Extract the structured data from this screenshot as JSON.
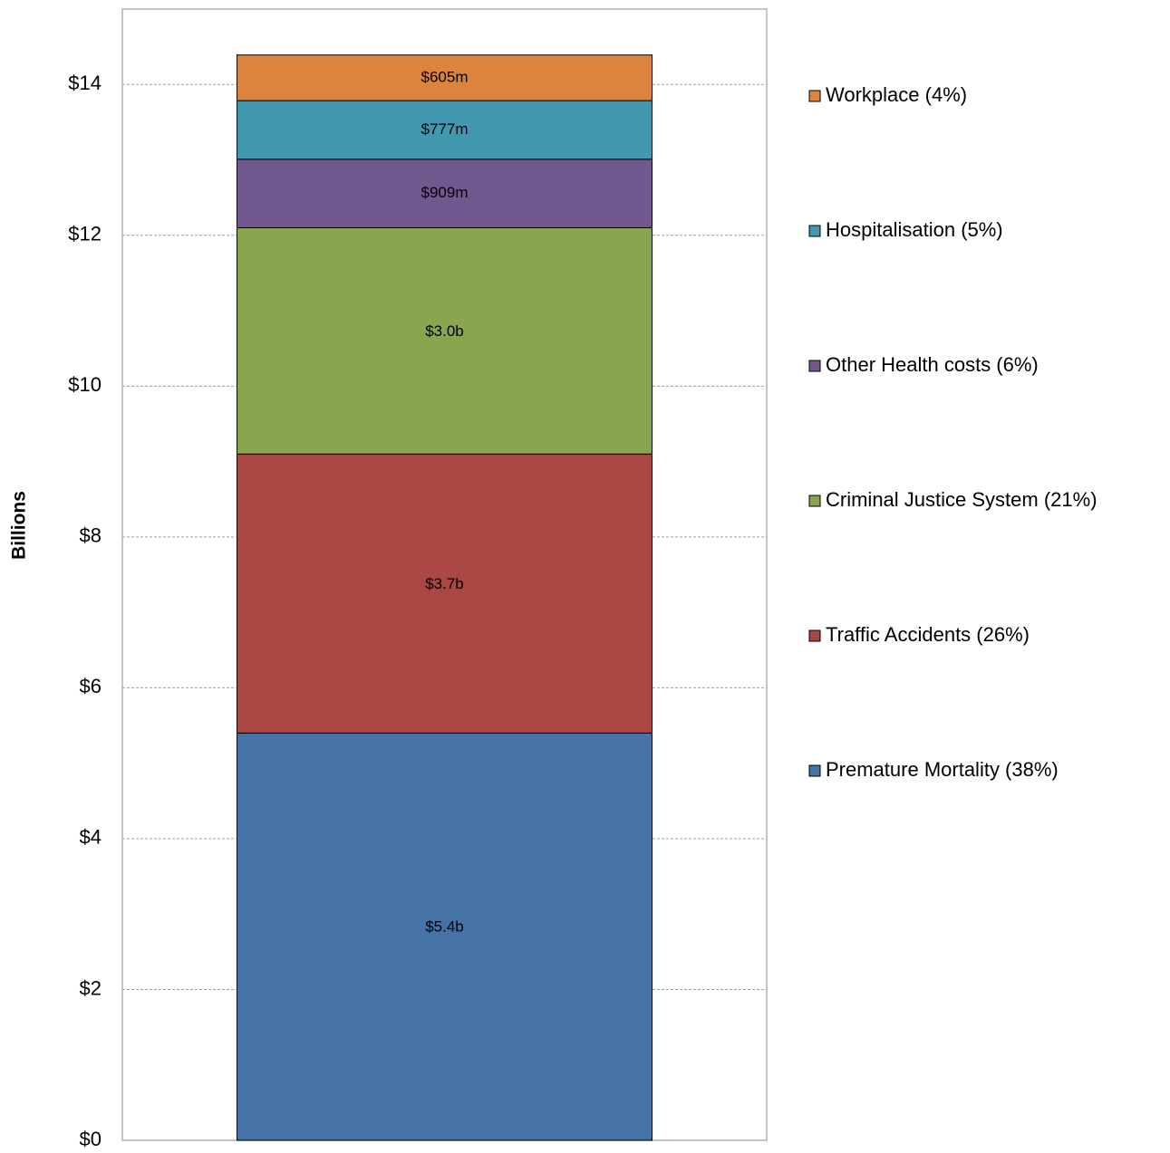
{
  "chart_data": {
    "type": "stacked_bar",
    "y_label": "Billions",
    "categories": [
      null
    ],
    "series": [
      {
        "name": "Premature Mortality (38%)",
        "color": "#4572a7",
        "values": [
          5.4
        ],
        "value_labels": [
          "$5.4b"
        ]
      },
      {
        "name": "Traffic Accidents (26%)",
        "color": "#aa4643",
        "values": [
          3.7
        ],
        "value_labels": [
          "$3.7b"
        ]
      },
      {
        "name": "Criminal Justice System (21%)",
        "color": "#89a54e",
        "values": [
          3.0
        ],
        "value_labels": [
          "$3.0b"
        ]
      },
      {
        "name": "Other Health costs (6%)",
        "color": "#71588f",
        "values": [
          0.909
        ],
        "value_labels": [
          "$909m"
        ]
      },
      {
        "name": "Hospitalisation (5%)",
        "color": "#4198af",
        "values": [
          0.777
        ],
        "value_labels": [
          "$777m"
        ]
      },
      {
        "name": "Workplace (4%)",
        "color": "#db843d",
        "values": [
          0.605
        ],
        "value_labels": [
          "$605m"
        ]
      }
    ],
    "ylim": [
      0,
      15
    ],
    "yticks": [
      {
        "value": 0,
        "label": "$0"
      },
      {
        "value": 2,
        "label": "$2"
      },
      {
        "value": 4,
        "label": "$4"
      },
      {
        "value": 6,
        "label": "$6"
      },
      {
        "value": 8,
        "label": "$8"
      },
      {
        "value": 10,
        "label": "$10"
      },
      {
        "value": 12,
        "label": "$12"
      },
      {
        "value": 14,
        "label": "$14"
      }
    ],
    "grid": true,
    "legend": "right"
  }
}
